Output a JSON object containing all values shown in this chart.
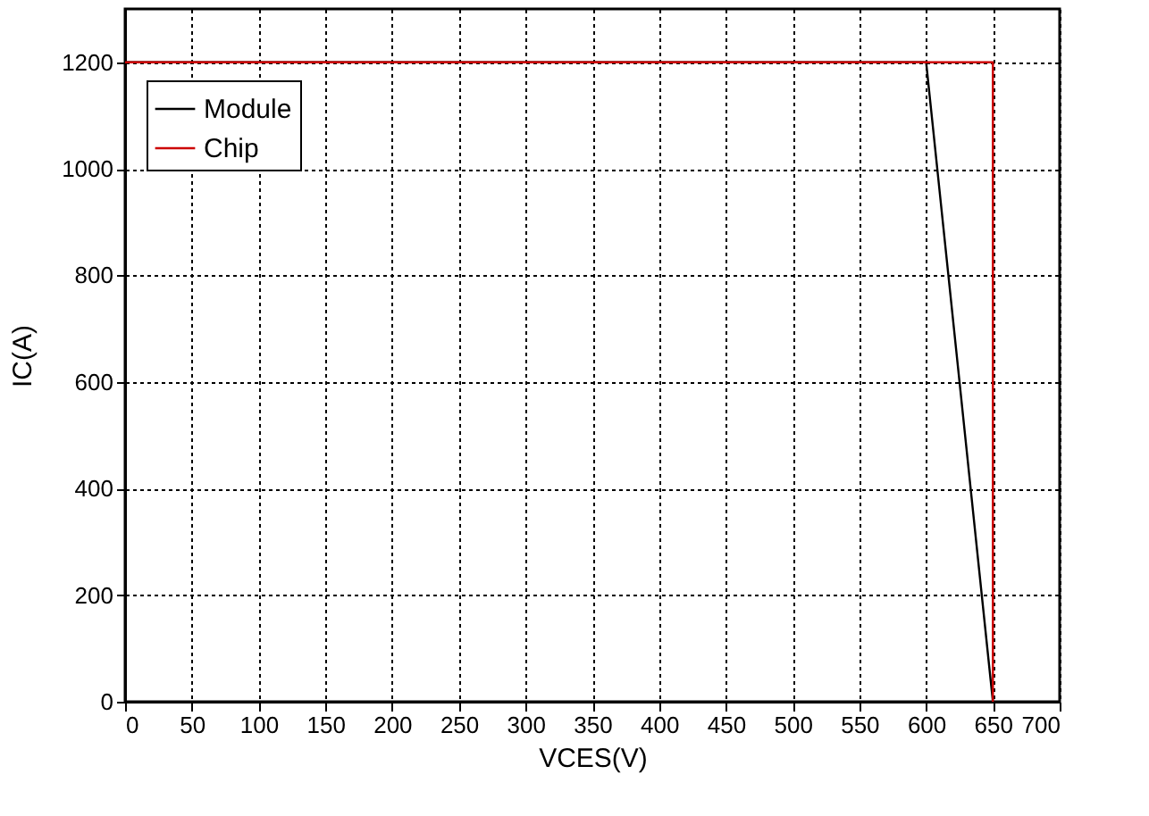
{
  "chart_data": {
    "type": "line",
    "xlabel": "VCES(V)",
    "ylabel": "IC(A)",
    "xlim": [
      0,
      700
    ],
    "xticks": [
      0,
      50,
      100,
      150,
      200,
      250,
      300,
      350,
      400,
      450,
      500,
      550,
      600,
      650,
      700
    ],
    "ylim": [
      0,
      1300
    ],
    "yticks": [
      0,
      200,
      400,
      600,
      800,
      1000,
      1200
    ],
    "grid": true,
    "legend": "top left",
    "marker": "none",
    "line_style": "solid",
    "series": [
      {
        "name": "Module",
        "color": "#000000",
        "x": [
          0,
          600,
          650
        ],
        "values": [
          1200,
          1200,
          0
        ]
      },
      {
        "name": "Chip",
        "color": "#cc0000",
        "x": [
          0,
          650,
          650
        ],
        "values": [
          1200,
          1200,
          0
        ]
      }
    ]
  }
}
